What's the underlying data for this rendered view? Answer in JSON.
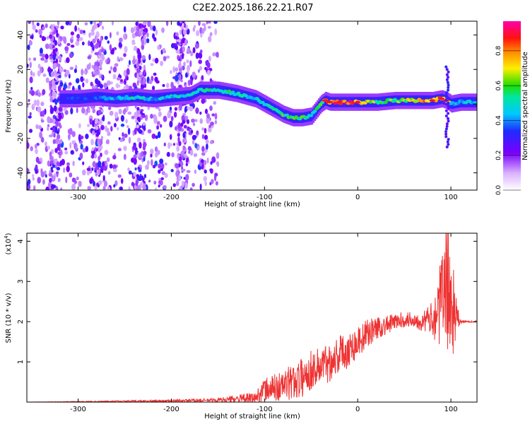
{
  "title": "C2E2.2025.186.22.21.R07",
  "chart_data": [
    {
      "type": "heatmap",
      "xlabel": "Height of straight line (km)",
      "ylabel": "Frequency (Hz)",
      "xlim": [
        -355,
        128
      ],
      "ylim": [
        -50,
        48
      ],
      "x_ticks": [
        -300,
        -200,
        -100,
        0,
        100
      ],
      "y_ticks": [
        -40,
        -20,
        0,
        20,
        40
      ],
      "colorbar": {
        "label": "Normalized spectral amplitude",
        "range": [
          0.0,
          0.97
        ],
        "ticks": [
          0.0,
          0.2,
          0.4,
          0.6,
          0.8
        ],
        "colormap": "white-purple-blue-cyan-green-yellow-orange-red-magenta"
      },
      "ridge": {
        "x": [
          -320,
          -300,
          -280,
          -260,
          -240,
          -220,
          -200,
          -180,
          -170,
          -150,
          -130,
          -110,
          -100,
          -90,
          -80,
          -70,
          -60,
          -50,
          -40,
          -35,
          -30,
          -20,
          0,
          20,
          40,
          60,
          80,
          90,
          95,
          100,
          110,
          128
        ],
        "frequency": [
          3,
          3,
          4,
          3,
          4,
          3,
          4,
          5,
          8,
          8,
          6,
          3,
          0,
          -3,
          -6,
          -8,
          -8,
          -7,
          0,
          2,
          1,
          1,
          1,
          1,
          2,
          2,
          2,
          3,
          2,
          0,
          1,
          1
        ],
        "amplitude": [
          0.35,
          0.35,
          0.4,
          0.45,
          0.55,
          0.45,
          0.5,
          0.5,
          0.6,
          0.6,
          0.55,
          0.5,
          0.55,
          0.6,
          0.6,
          0.6,
          0.65,
          0.5,
          0.6,
          0.8,
          0.85,
          0.9,
          0.9,
          0.65,
          0.62,
          0.75,
          0.85,
          0.9,
          0.85,
          0.5,
          0.5,
          0.5
        ]
      },
      "scatter_region": {
        "x_from": -355,
        "x_to": -150,
        "frequency_from": -50,
        "frequency_to": 48,
        "amplitude_max": 0.3
      }
    },
    {
      "type": "line",
      "xlabel": "Height of straight line (km)",
      "ylabel": "SNR (10 * v/v)",
      "y_multiplier": "(x10",
      "y_multiplier_exponent": "4",
      "xlim": [
        -355,
        128
      ],
      "ylim": [
        0,
        4.2
      ],
      "x_ticks": [
        -300,
        -200,
        -100,
        0,
        100
      ],
      "y_ticks": [
        1,
        2,
        3,
        4
      ],
      "line_color": "#ee3333",
      "series": [
        {
          "x": [
            -355,
            -300,
            -250,
            -200,
            -150,
            -110,
            -100,
            -90,
            -80,
            -70,
            -60,
            -50,
            -40,
            -30,
            -20,
            -10,
            0,
            10,
            20,
            30,
            40,
            50,
            60,
            70,
            80,
            85,
            90,
            95,
            100,
            105,
            110,
            120,
            128
          ],
          "values": [
            0.0,
            0.01,
            0.02,
            0.03,
            0.05,
            0.1,
            0.3,
            0.35,
            0.4,
            0.5,
            0.6,
            0.8,
            0.9,
            1.0,
            1.2,
            1.3,
            1.5,
            1.7,
            1.85,
            1.9,
            2.0,
            2.05,
            2.05,
            2.0,
            2.1,
            2.2,
            2.5,
            3.0,
            2.5,
            2.1,
            2.0,
            2.0,
            2.0
          ],
          "spread": [
            0.0,
            0.01,
            0.02,
            0.03,
            0.05,
            0.15,
            0.3,
            0.35,
            0.4,
            0.45,
            0.5,
            0.5,
            0.5,
            0.5,
            0.5,
            0.45,
            0.4,
            0.35,
            0.3,
            0.25,
            0.2,
            0.2,
            0.2,
            0.25,
            0.4,
            0.8,
            1.2,
            1.6,
            1.6,
            0.6,
            0.05,
            0.02,
            0.02
          ]
        }
      ]
    }
  ]
}
